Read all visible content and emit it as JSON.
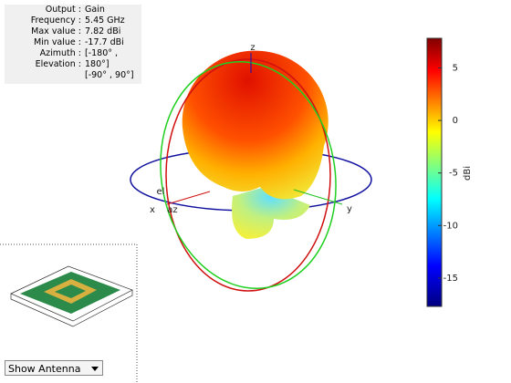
{
  "info": [
    {
      "key": "Output",
      "value": "Gain"
    },
    {
      "key": "Frequency",
      "value": "5.45 GHz"
    },
    {
      "key": "Max value",
      "value": "7.82 dBi"
    },
    {
      "key": "Min value",
      "value": "-17.7 dBi"
    },
    {
      "key": "Azimuth",
      "value": "[-180° ,"
    },
    {
      "key": "Elevation",
      "value": "180°]"
    },
    {
      "key": "",
      "value": "[-90° , 90°]"
    }
  ],
  "chart_data": {
    "type": "pattern",
    "axis_labels": {
      "x": "x",
      "y": "y",
      "z": "z",
      "el": "el",
      "az": "az"
    },
    "colorbar_label": "dBi",
    "clim": [
      -17.7,
      7.82
    ],
    "cticks": [
      -15,
      -10,
      -5,
      0,
      5
    ]
  },
  "controls": {
    "dropdown": "Show Antenna"
  }
}
